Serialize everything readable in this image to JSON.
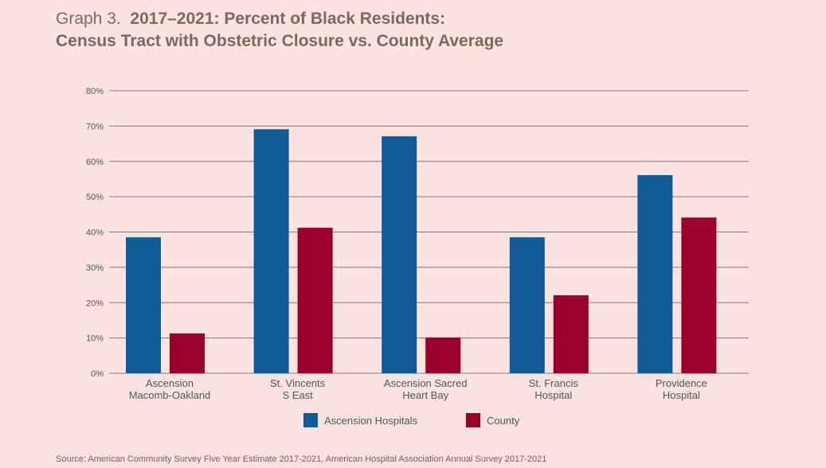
{
  "title": {
    "prefix": "Graph 3.",
    "line1": "2017–2021: Percent of Black Residents:",
    "line2": "Census Tract with Obstetric Closure vs. County Average"
  },
  "chart_data": {
    "type": "bar",
    "title": "2017–2021: Percent of Black Residents: Census Tract with Obstetric Closure vs. County Average",
    "categories": [
      [
        "Ascension",
        "Macomb-Oakland"
      ],
      [
        "St. Vincents",
        "S East"
      ],
      [
        "Ascension Sacred",
        "Heart Bay"
      ],
      [
        "St. Francis",
        "Hospital"
      ],
      [
        "Providence",
        "Hospital"
      ]
    ],
    "series": [
      {
        "name": "Ascension Hospitals",
        "color": "#105b96",
        "values": [
          38.5,
          69.1,
          67.1,
          38.5,
          56.1
        ]
      },
      {
        "name": "County",
        "color": "#9b002c",
        "values": [
          11.3,
          41.2,
          10.1,
          22.1,
          44.1
        ]
      }
    ],
    "ylim": [
      0,
      80
    ],
    "yticks": [
      "0%",
      "10%",
      "20%",
      "30%",
      "40%",
      "50%",
      "60%",
      "70%",
      "80%"
    ],
    "grid": true,
    "legend": "bottom-center",
    "xlabel": "",
    "ylabel": ""
  },
  "source": "Source: American Community Survey Five Year Estimate 2017-2021, American Hospital Association Annual Survey 2017-2021"
}
